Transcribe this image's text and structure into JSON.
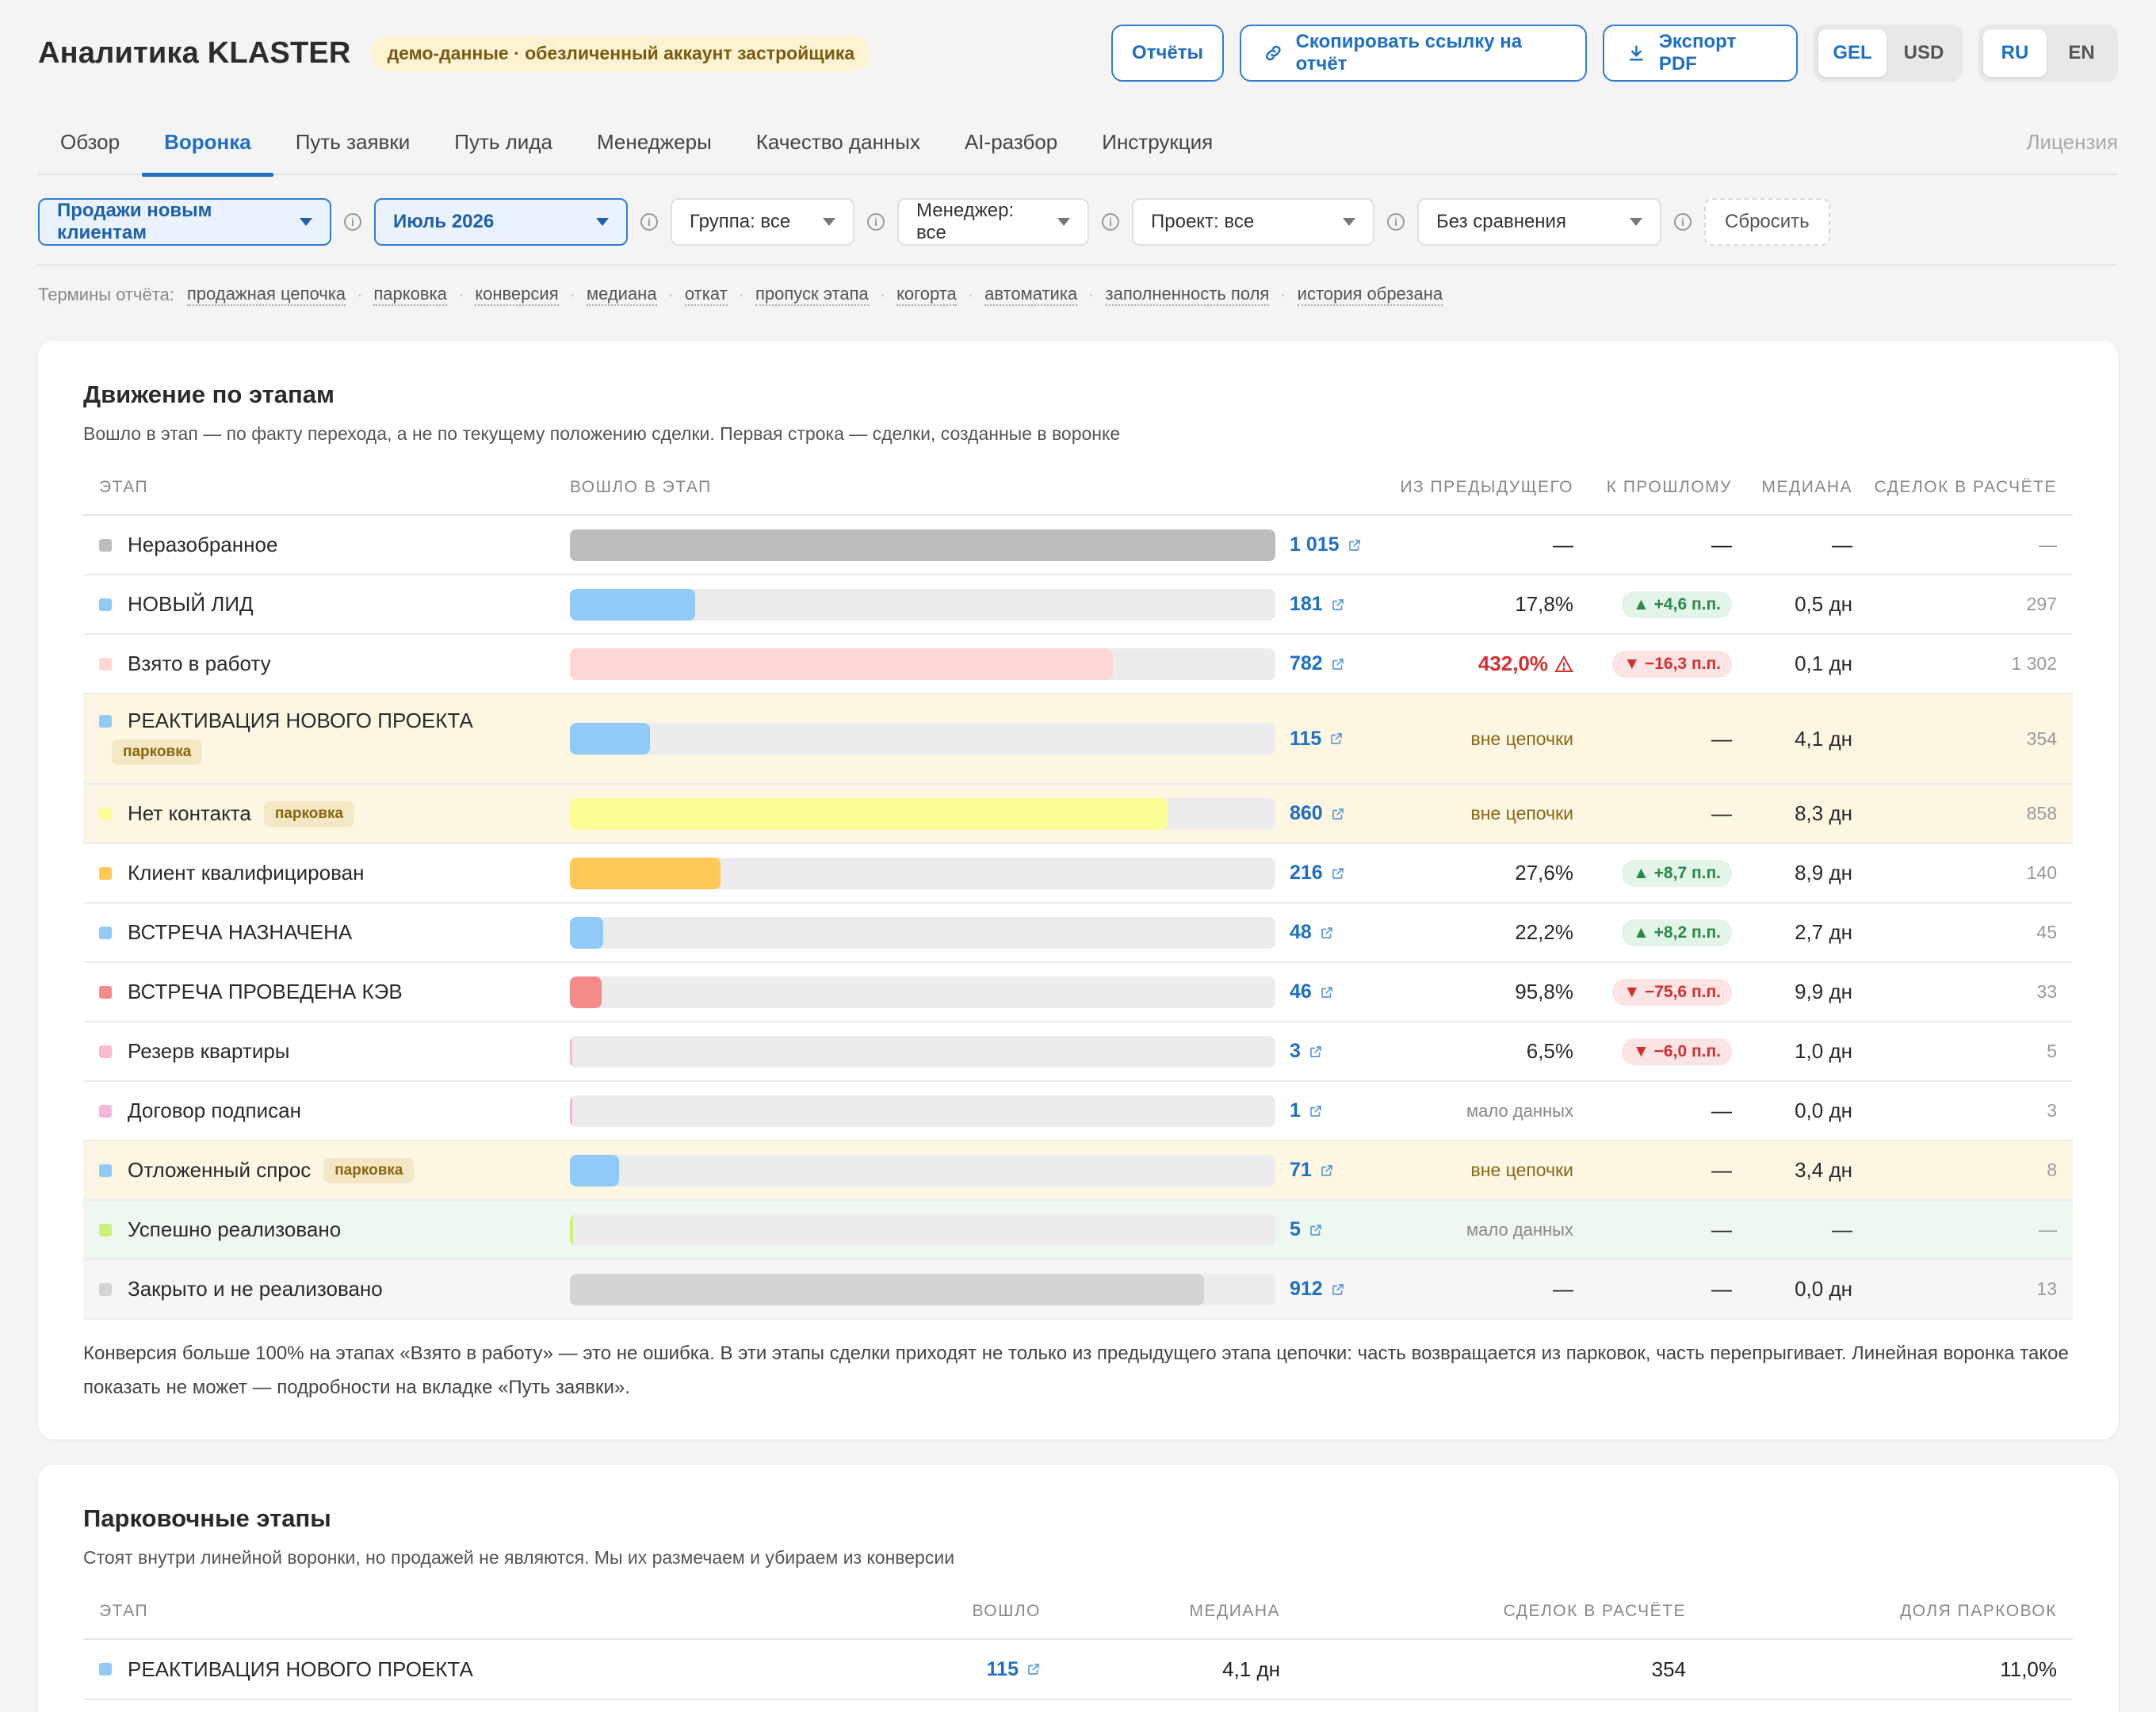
{
  "header": {
    "title": "Аналитика KLASTER",
    "demo_badge": "демо-данные · обезличенный аккаунт застройщика",
    "reports_label": "Отчёты",
    "copy_link_label": "Скопировать ссылку на отчёт",
    "export_label": "Экспорт PDF",
    "currency": [
      "GEL",
      "USD"
    ],
    "currency_selected": "GEL",
    "language": [
      "RU",
      "EN"
    ],
    "language_selected": "RU"
  },
  "tabs": [
    "Обзор",
    "Воронка",
    "Путь заявки",
    "Путь лида",
    "Менеджеры",
    "Качество данных",
    "AI-разбор",
    "Инструкция"
  ],
  "active_tab": "Воронка",
  "license_label": "Лицензия",
  "filters": {
    "pipeline": "Продажи новым клиентам",
    "period": "Июль 2026",
    "group": "Группа: все",
    "manager": "Менеджер: все",
    "project": "Проект: все",
    "comparison": "Без сравнения",
    "reset": "Сбросить"
  },
  "terms": {
    "label": "Термины отчёта:",
    "items": [
      "продажная цепочка",
      "парковка",
      "конверсия",
      "медиана",
      "откат",
      "пропуск этапа",
      "когорта",
      "автоматика",
      "заполненность поля",
      "история обрезана"
    ]
  },
  "stages_card": {
    "title": "Движение по этапам",
    "subtitle": "Вошло в этап — по факту перехода, а не по текущему положению сделки. Первая строка — сделки, созданные в воронке",
    "columns": {
      "stage": "Этап",
      "entered": "Вошло в этап",
      "from_prev": "Из предыдущего",
      "to_past": "К прошлому",
      "median": "Медиана",
      "deals": "Сделок в расчёте"
    },
    "rows": [
      {
        "name": "Неразобранное",
        "color": "#bdbdbd",
        "fill": 1.0,
        "count": "1 015",
        "from_prev": "—",
        "delta": "—",
        "delta_dir": "",
        "median": "—",
        "deals": "—",
        "type": "normal",
        "badge": ""
      },
      {
        "name": "НОВЫЙ ЛИД",
        "color": "#90caf9",
        "fill": 0.178,
        "count": "181",
        "from_prev": "17,8%",
        "delta": "▲ +4,6 п.п.",
        "delta_dir": "up",
        "median": "0,5 дн",
        "deals": "297",
        "type": "normal",
        "badge": ""
      },
      {
        "name": "Взято в работу",
        "color": "#ffd6d6",
        "fill": 0.77,
        "count": "782",
        "from_prev": "432,0%",
        "delta": "▼ −16,3 п.п.",
        "delta_dir": "down",
        "median": "0,1 дн",
        "deals": "1 302",
        "type": "warn",
        "badge": ""
      },
      {
        "name": "РЕАКТИВАЦИЯ НОВОГО ПРОЕКТА",
        "color": "#90caf9",
        "fill": 0.113,
        "count": "115",
        "from_prev": "вне цепочки",
        "delta": "—",
        "delta_dir": "",
        "median": "4,1 дн",
        "deals": "354",
        "type": "parked-tall",
        "badge": "парковка"
      },
      {
        "name": "Нет контакта",
        "color": "#fdfd96",
        "fill": 0.847,
        "count": "860",
        "from_prev": "вне цепочки",
        "delta": "—",
        "delta_dir": "",
        "median": "8,3 дн",
        "deals": "858",
        "type": "parked",
        "badge": "парковка"
      },
      {
        "name": "Клиент квалифицирован",
        "color": "#ffc857",
        "fill": 0.213,
        "count": "216",
        "from_prev": "27,6%",
        "delta": "▲ +8,7 п.п.",
        "delta_dir": "up",
        "median": "8,9 дн",
        "deals": "140",
        "type": "normal",
        "badge": ""
      },
      {
        "name": "ВСТРЕЧА НАЗНАЧЕНА",
        "color": "#90caf9",
        "fill": 0.047,
        "count": "48",
        "from_prev": "22,2%",
        "delta": "▲ +8,2 п.п.",
        "delta_dir": "up",
        "median": "2,7 дн",
        "deals": "45",
        "type": "normal",
        "badge": ""
      },
      {
        "name": "ВСТРЕЧА ПРОВЕДЕНА КЭВ",
        "color": "#f48a8a",
        "fill": 0.045,
        "count": "46",
        "from_prev": "95,8%",
        "delta": "▼ −75,6 п.п.",
        "delta_dir": "down",
        "median": "9,9 дн",
        "deals": "33",
        "type": "normal",
        "badge": ""
      },
      {
        "name": "Резерв квартиры",
        "color": "#f8bbd0",
        "fill": 0.003,
        "count": "3",
        "from_prev": "6,5%",
        "delta": "▼ −6,0 п.п.",
        "delta_dir": "down",
        "median": "1,0 дн",
        "deals": "5",
        "type": "normal",
        "badge": ""
      },
      {
        "name": "Договор подписан",
        "color": "#f4b6d8",
        "fill": 0.001,
        "count": "1",
        "from_prev": "мало данных",
        "delta": "—",
        "delta_dir": "",
        "median": "0,0 дн",
        "deals": "3",
        "type": "muted",
        "badge": ""
      },
      {
        "name": "Отложенный спрос",
        "color": "#90caf9",
        "fill": 0.07,
        "count": "71",
        "from_prev": "вне цепочки",
        "delta": "—",
        "delta_dir": "",
        "median": "3,4 дн",
        "deals": "8",
        "type": "parked",
        "badge": "парковка"
      },
      {
        "name": "Успешно реализовано",
        "color": "#ccf07a",
        "fill": 0.005,
        "count": "5",
        "from_prev": "мало данных",
        "delta": "—",
        "delta_dir": "",
        "median": "—",
        "deals": "—",
        "type": "success",
        "badge": ""
      },
      {
        "name": "Закрыто и не реализовано",
        "color": "#d4d4d4",
        "fill": 0.899,
        "count": "912",
        "from_prev": "—",
        "delta": "—",
        "delta_dir": "",
        "median": "0,0 дн",
        "deals": "13",
        "type": "closed",
        "badge": ""
      }
    ],
    "note": "Конверсия больше 100% на этапах «Взято в работу» — это не ошибка. В эти этапы сделки приходят не только из предыдущего этапа цепочки: часть возвращается из парковок, часть перепрыгивает. Линейная воронка такое показать не может — подробности на вкладке «Путь заявки»."
  },
  "parking_card": {
    "title": "Парковочные этапы",
    "subtitle": "Стоят внутри линейной воронки, но продажей не являются. Мы их размечаем и убираем из конверсии",
    "columns": {
      "stage": "Этап",
      "entered": "Вошло",
      "median": "Медиана",
      "deals": "Сделок в расчёте",
      "share": "Доля парковок"
    },
    "rows": [
      {
        "name": "РЕАКТИВАЦИЯ НОВОГО ПРОЕКТА",
        "color": "#90caf9",
        "count": "115",
        "median": "4,1 дн",
        "deals": "354",
        "share": "11,0%"
      }
    ]
  },
  "colors": {
    "accent": "#1f6fc4",
    "positive": "#2a8a4a",
    "negative": "#d32f2f",
    "parked_bg": "#fdf6e3"
  }
}
